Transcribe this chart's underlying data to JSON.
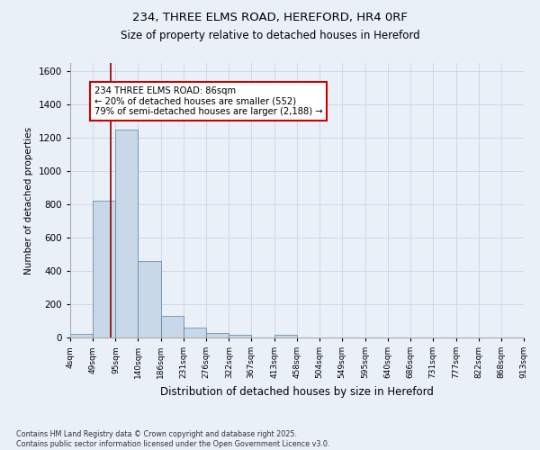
{
  "title1": "234, THREE ELMS ROAD, HEREFORD, HR4 0RF",
  "title2": "Size of property relative to detached houses in Hereford",
  "xlabel": "Distribution of detached houses by size in Hereford",
  "ylabel": "Number of detached properties",
  "bins": [
    4,
    49,
    95,
    140,
    186,
    231,
    276,
    322,
    367,
    413,
    458,
    504,
    549,
    595,
    640,
    686,
    731,
    777,
    822,
    868,
    913
  ],
  "bin_labels": [
    "4sqm",
    "49sqm",
    "95sqm",
    "140sqm",
    "186sqm",
    "231sqm",
    "276sqm",
    "322sqm",
    "367sqm",
    "413sqm",
    "458sqm",
    "504sqm",
    "549sqm",
    "595sqm",
    "640sqm",
    "686sqm",
    "731sqm",
    "777sqm",
    "822sqm",
    "868sqm",
    "913sqm"
  ],
  "counts": [
    20,
    820,
    1250,
    460,
    130,
    60,
    25,
    15,
    0,
    15,
    0,
    0,
    0,
    0,
    0,
    0,
    0,
    0,
    0,
    0
  ],
  "bar_color": "#c8d8e8",
  "bar_edge_color": "#5580a0",
  "vline_x": 86,
  "vline_color": "#8b0000",
  "annotation_line1": "234 THREE ELMS ROAD: 86sqm",
  "annotation_line2": "← 20% of detached houses are smaller (552)",
  "annotation_line3": "79% of semi-detached houses are larger (2,188) →",
  "annotation_box_color": "#ffffff",
  "annotation_box_edge": "#cc0000",
  "ylim": [
    0,
    1650
  ],
  "xlim": [
    4,
    913
  ],
  "background_color": "#eaf0f8",
  "grid_color": "#d0d8e8",
  "footer": "Contains HM Land Registry data © Crown copyright and database right 2025.\nContains public sector information licensed under the Open Government Licence v3.0."
}
